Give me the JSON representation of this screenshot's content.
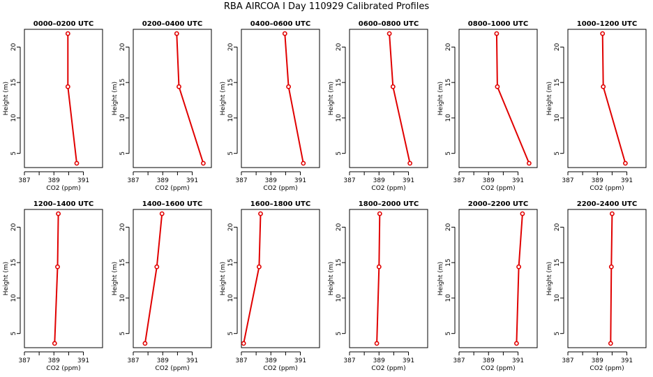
{
  "figure": {
    "title": "RBA AIRCOA I  Day 110929  Calibrated Profiles"
  },
  "chart_data": [
    {
      "type": "line",
      "title": "0000–0200 UTC",
      "xlabel": "CO2 (ppm)",
      "ylabel": "Height (m)",
      "xlim": [
        387,
        392.3
      ],
      "ylim": [
        3,
        22.5
      ],
      "xticks": [
        387,
        388,
        389,
        390,
        391
      ],
      "xticklabels": [
        "387",
        "",
        "389",
        "",
        "391"
      ],
      "yticks": [
        5,
        10,
        15,
        20
      ],
      "x": [
        390.55,
        389.95,
        389.95
      ],
      "y": [
        3.6,
        14.4,
        21.9
      ]
    },
    {
      "type": "line",
      "title": "0200–0400 UTC",
      "xlabel": "CO2 (ppm)",
      "ylabel": "Height (m)",
      "xlim": [
        387,
        392.3
      ],
      "ylim": [
        3,
        22.5
      ],
      "xticks": [
        387,
        388,
        389,
        390,
        391
      ],
      "xticklabels": [
        "387",
        "",
        "389",
        "",
        "391"
      ],
      "yticks": [
        5,
        10,
        15,
        20
      ],
      "x": [
        391.75,
        390.1,
        389.95
      ],
      "y": [
        3.6,
        14.4,
        21.9
      ]
    },
    {
      "type": "line",
      "title": "0400–0600 UTC",
      "xlabel": "CO2 (ppm)",
      "ylabel": "Height (m)",
      "xlim": [
        387,
        392.3
      ],
      "ylim": [
        3,
        22.5
      ],
      "xticks": [
        387,
        388,
        389,
        390,
        391
      ],
      "xticklabels": [
        "387",
        "",
        "389",
        "",
        "391"
      ],
      "yticks": [
        5,
        10,
        15,
        20
      ],
      "x": [
        391.2,
        390.2,
        389.95
      ],
      "y": [
        3.6,
        14.4,
        21.9
      ]
    },
    {
      "type": "line",
      "title": "0600–0800 UTC",
      "xlabel": "CO2 (ppm)",
      "ylabel": "Height (m)",
      "xlim": [
        387,
        392.3
      ],
      "ylim": [
        3,
        22.5
      ],
      "xticks": [
        387,
        388,
        389,
        390,
        391
      ],
      "xticklabels": [
        "387",
        "",
        "389",
        "",
        "391"
      ],
      "yticks": [
        5,
        10,
        15,
        20
      ],
      "x": [
        391.1,
        389.95,
        389.7
      ],
      "y": [
        3.6,
        14.4,
        21.9
      ]
    },
    {
      "type": "line",
      "title": "0800–1000 UTC",
      "xlabel": "CO2 (ppm)",
      "ylabel": "Height (m)",
      "xlim": [
        387,
        392.3
      ],
      "ylim": [
        3,
        22.5
      ],
      "xticks": [
        387,
        388,
        389,
        390,
        391
      ],
      "xticklabels": [
        "387",
        "",
        "389",
        "",
        "391"
      ],
      "yticks": [
        5,
        10,
        15,
        20
      ],
      "x": [
        391.75,
        389.6,
        389.55
      ],
      "y": [
        3.6,
        14.4,
        21.9
      ]
    },
    {
      "type": "line",
      "title": "1000–1200 UTC",
      "xlabel": "CO2 (ppm)",
      "ylabel": "Height (m)",
      "xlim": [
        387,
        392.3
      ],
      "ylim": [
        3,
        22.5
      ],
      "xticks": [
        387,
        388,
        389,
        390,
        391
      ],
      "xticklabels": [
        "387",
        "",
        "389",
        "",
        "391"
      ],
      "yticks": [
        5,
        10,
        15,
        20
      ],
      "x": [
        390.9,
        389.4,
        389.35
      ],
      "y": [
        3.6,
        14.4,
        21.9
      ]
    },
    {
      "type": "line",
      "title": "1200–1400 UTC",
      "xlabel": "CO2 (ppm)",
      "ylabel": "Height (m)",
      "xlim": [
        387,
        392.3
      ],
      "ylim": [
        3,
        22.5
      ],
      "xticks": [
        387,
        388,
        389,
        390,
        391
      ],
      "xticklabels": [
        "387",
        "",
        "389",
        "",
        "391"
      ],
      "yticks": [
        5,
        10,
        15,
        20
      ],
      "x": [
        389.05,
        389.25,
        389.3
      ],
      "y": [
        3.6,
        14.4,
        21.9
      ]
    },
    {
      "type": "line",
      "title": "1400–1600 UTC",
      "xlabel": "CO2 (ppm)",
      "ylabel": "Height (m)",
      "xlim": [
        387,
        392.3
      ],
      "ylim": [
        3,
        22.5
      ],
      "xticks": [
        387,
        388,
        389,
        390,
        391
      ],
      "xticklabels": [
        "387",
        "",
        "389",
        "",
        "391"
      ],
      "yticks": [
        5,
        10,
        15,
        20
      ],
      "x": [
        387.8,
        388.6,
        388.95
      ],
      "y": [
        3.6,
        14.4,
        21.9
      ]
    },
    {
      "type": "line",
      "title": "1600–1800 UTC",
      "xlabel": "CO2 (ppm)",
      "ylabel": "Height (m)",
      "xlim": [
        387,
        392.3
      ],
      "ylim": [
        3,
        22.5
      ],
      "xticks": [
        387,
        388,
        389,
        390,
        391
      ],
      "xticklabels": [
        "387",
        "",
        "389",
        "",
        "391"
      ],
      "yticks": [
        5,
        10,
        15,
        20
      ],
      "x": [
        387.15,
        388.2,
        388.3
      ],
      "y": [
        3.6,
        14.4,
        21.9
      ]
    },
    {
      "type": "line",
      "title": "1800–2000 UTC",
      "xlabel": "CO2 (ppm)",
      "ylabel": "Height (m)",
      "xlim": [
        387,
        392.3
      ],
      "ylim": [
        3,
        22.5
      ],
      "xticks": [
        387,
        388,
        389,
        390,
        391
      ],
      "xticklabels": [
        "387",
        "",
        "389",
        "",
        "391"
      ],
      "yticks": [
        5,
        10,
        15,
        20
      ],
      "x": [
        388.85,
        389.0,
        389.05
      ],
      "y": [
        3.6,
        14.4,
        21.9
      ]
    },
    {
      "type": "line",
      "title": "2000–2200 UTC",
      "xlabel": "CO2 (ppm)",
      "ylabel": "Height (m)",
      "xlim": [
        387,
        392.3
      ],
      "ylim": [
        3,
        22.5
      ],
      "xticks": [
        387,
        388,
        389,
        390,
        391
      ],
      "xticklabels": [
        "387",
        "",
        "389",
        "",
        "391"
      ],
      "yticks": [
        5,
        10,
        15,
        20
      ],
      "x": [
        390.9,
        391.05,
        391.3
      ],
      "y": [
        3.6,
        14.4,
        21.9
      ]
    },
    {
      "type": "line",
      "title": "2200–2400 UTC",
      "xlabel": "CO2 (ppm)",
      "ylabel": "Height (m)",
      "xlim": [
        387,
        392.3
      ],
      "ylim": [
        3,
        22.5
      ],
      "xticks": [
        387,
        388,
        389,
        390,
        391
      ],
      "xticklabels": [
        "387",
        "",
        "389",
        "",
        "391"
      ],
      "yticks": [
        5,
        10,
        15,
        20
      ],
      "x": [
        389.9,
        389.95,
        390.0
      ],
      "y": [
        3.6,
        14.4,
        21.9
      ]
    }
  ]
}
